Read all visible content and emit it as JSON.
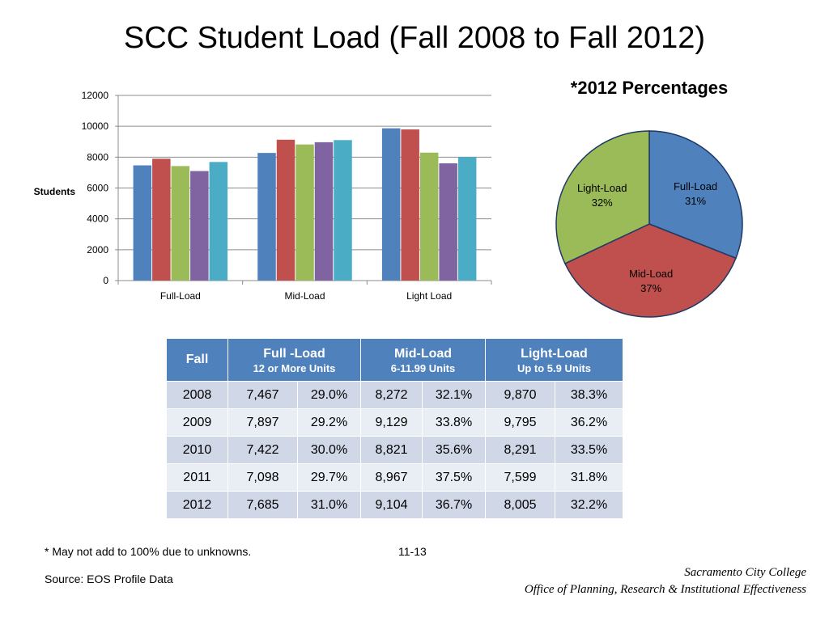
{
  "title": "SCC Student Load (Fall 2008 to Fall 2012)",
  "chart_data": [
    {
      "type": "bar",
      "title": "",
      "xlabel": "",
      "ylabel": "Students",
      "ylim": [
        0,
        12000
      ],
      "yticks": [
        0,
        2000,
        4000,
        6000,
        8000,
        10000,
        12000
      ],
      "grid": true,
      "legend": "none",
      "categories": [
        "Full-Load",
        "Mid-Load",
        "Light Load"
      ],
      "series": [
        {
          "color": "#4f81bd",
          "values": [
            7467,
            8272,
            9870
          ]
        },
        {
          "color": "#c0504d",
          "values": [
            7897,
            9129,
            9795
          ]
        },
        {
          "color": "#9bbb59",
          "values": [
            7422,
            8821,
            8291
          ]
        },
        {
          "color": "#8064a2",
          "values": [
            7098,
            8967,
            7599
          ]
        },
        {
          "color": "#4bacc6",
          "values": [
            7685,
            9104,
            8005
          ]
        }
      ]
    },
    {
      "type": "pie",
      "title": "*2012 Percentages",
      "slices": [
        {
          "label": "Full-Load",
          "percent_label": "31%",
          "value": 31,
          "color": "#4f81bd"
        },
        {
          "label": "Mid-Load",
          "percent_label": "37%",
          "value": 37,
          "color": "#c0504d"
        },
        {
          "label": "Light-Load",
          "percent_label": "32%",
          "value": 32,
          "color": "#9bbb59"
        }
      ]
    }
  ],
  "table": {
    "headers": {
      "fall": "Fall",
      "full_title": "Full -Load",
      "full_sub": "12 or  More Units",
      "mid_title": "Mid-Load",
      "mid_sub": "6-11.99 Units",
      "light_title": "Light-Load",
      "light_sub": "Up to 5.9 Units"
    },
    "rows": [
      [
        "2008",
        "7,467",
        "29.0%",
        "8,272",
        "32.1%",
        "9,870",
        "38.3%"
      ],
      [
        "2009",
        "7,897",
        "29.2%",
        "9,129",
        "33.8%",
        "9,795",
        "36.2%"
      ],
      [
        "2010",
        "7,422",
        "30.0%",
        "8,821",
        "35.6%",
        "8,291",
        "33.5%"
      ],
      [
        "2011",
        "7,098",
        "29.7%",
        "8,967",
        "37.5%",
        "7,599",
        "31.8%"
      ],
      [
        "2012",
        "7,685",
        "31.0%",
        "9,104",
        "36.7%",
        "8,005",
        "32.2%"
      ]
    ]
  },
  "footnote": "* May not add to 100% due to unknowns.",
  "page_number": "11-13",
  "source": "Source: EOS Profile Data",
  "college_name": "Sacramento City College",
  "office_name": "Office of Planning, Research & Institutional Effectiveness"
}
